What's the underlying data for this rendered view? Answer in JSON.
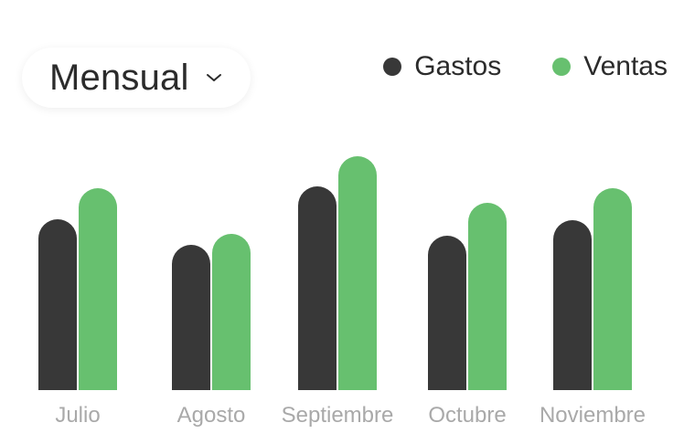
{
  "period_selector": {
    "label": "Mensual",
    "icon": "chevron-down-icon"
  },
  "colors": {
    "gastos": "#383838",
    "ventas": "#67c06f",
    "tick": "#a9a9a9"
  },
  "chart_data": {
    "type": "bar",
    "categories": [
      "Julio",
      "Agosto",
      "Septiembre",
      "Octubre",
      "Noviembre"
    ],
    "series": [
      {
        "name": "Gastos",
        "values": [
          187,
          159,
          223,
          169,
          186
        ]
      },
      {
        "name": "Ventas",
        "values": [
          221,
          171,
          256,
          205,
          221
        ]
      }
    ],
    "ylim": [
      0,
      260
    ],
    "grid": false,
    "legend_position": "top-right"
  }
}
